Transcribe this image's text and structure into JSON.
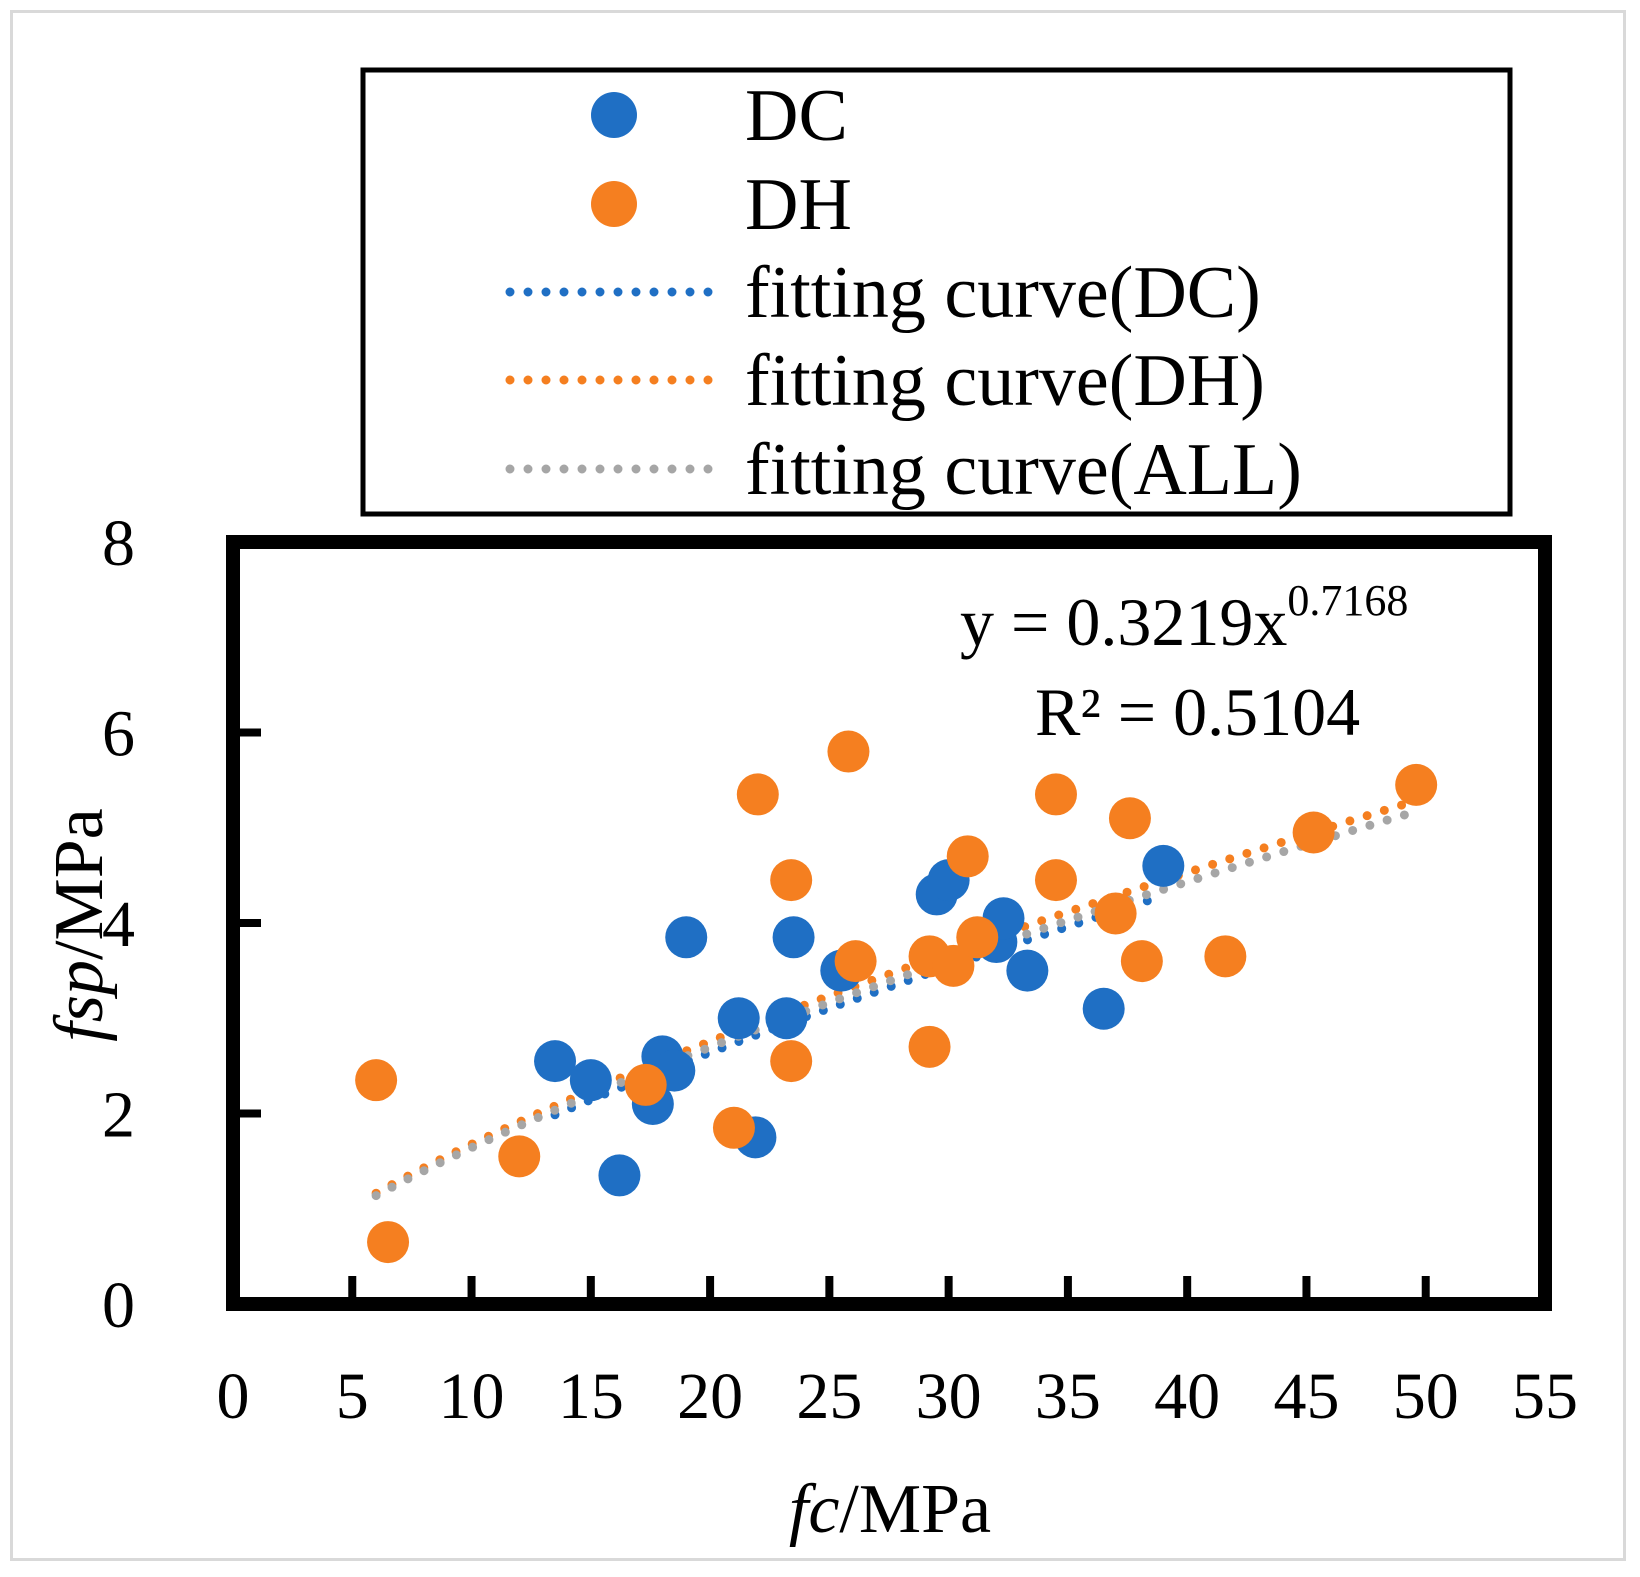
{
  "chart_data": {
    "type": "scatter",
    "xlabel_italic": "fc",
    "xlabel_unit": "/MPa",
    "ylabel_italic": "fsp",
    "ylabel_unit": "/MPa",
    "xlim": [
      0,
      55
    ],
    "ylim": [
      0,
      8
    ],
    "x_ticks": [
      "0",
      "5",
      "10",
      "15",
      "20",
      "25",
      "30",
      "35",
      "40",
      "45",
      "50",
      "55"
    ],
    "y_ticks": [
      "0",
      "2",
      "4",
      "6",
      "8"
    ],
    "equation_base": "y = 0.3219x",
    "equation_exponent": "0.7168",
    "r_squared": "R² = 0.5104",
    "legend": {
      "position": "top (above plot)",
      "items": [
        {
          "label": "DC",
          "kind": "marker",
          "color": "#1f6fc4"
        },
        {
          "label": "DH",
          "kind": "marker",
          "color": "#f57f20"
        },
        {
          "label": "fitting curve(DC)",
          "kind": "dotted-line",
          "color": "#1f6fc4"
        },
        {
          "label": "fitting curve(DH)",
          "kind": "dotted-line",
          "color": "#f57f20"
        },
        {
          "label": "fitting curve(ALL)",
          "kind": "dotted-line",
          "color": "#a6a6a6"
        }
      ]
    },
    "series": [
      {
        "name": "DC",
        "color": "#1f6fc4",
        "points": [
          [
            13.5,
            2.55
          ],
          [
            15.0,
            2.35
          ],
          [
            16.2,
            1.35
          ],
          [
            17.6,
            2.1
          ],
          [
            18.0,
            2.6
          ],
          [
            18.5,
            2.45
          ],
          [
            19.0,
            3.85
          ],
          [
            21.2,
            3.0
          ],
          [
            21.9,
            1.75
          ],
          [
            23.2,
            3.0
          ],
          [
            23.5,
            3.85
          ],
          [
            25.5,
            3.5
          ],
          [
            29.5,
            4.3
          ],
          [
            30.0,
            4.45
          ],
          [
            32.0,
            3.8
          ],
          [
            32.3,
            4.05
          ],
          [
            33.3,
            3.5
          ],
          [
            36.5,
            3.1
          ],
          [
            39.0,
            4.6
          ]
        ]
      },
      {
        "name": "DH",
        "color": "#f57f20",
        "points": [
          [
            6.0,
            2.35
          ],
          [
            6.5,
            0.65
          ],
          [
            12.0,
            1.55
          ],
          [
            17.3,
            2.3
          ],
          [
            21.0,
            1.85
          ],
          [
            22.0,
            5.35
          ],
          [
            23.4,
            4.45
          ],
          [
            23.4,
            2.55
          ],
          [
            25.8,
            5.8
          ],
          [
            26.1,
            3.6
          ],
          [
            29.2,
            3.65
          ],
          [
            29.2,
            2.7
          ],
          [
            30.2,
            3.55
          ],
          [
            30.8,
            4.7
          ],
          [
            31.2,
            3.85
          ],
          [
            34.5,
            5.35
          ],
          [
            34.5,
            4.45
          ],
          [
            37.0,
            4.1
          ],
          [
            37.6,
            5.1
          ],
          [
            38.1,
            3.6
          ],
          [
            41.6,
            3.65
          ],
          [
            45.3,
            4.95
          ],
          [
            49.6,
            5.45
          ]
        ]
      }
    ],
    "fits": [
      {
        "name": "fitting curve(DC)",
        "color": "#1f6fc4",
        "a": 0.301,
        "b": 0.725,
        "x_range": [
          13.5,
          39.0
        ]
      },
      {
        "name": "fitting curve(DH)",
        "color": "#f57f20",
        "a": 0.3219,
        "b": 0.7168,
        "x_range": [
          6.0,
          49.6
        ]
      },
      {
        "name": "fitting curve(ALL)",
        "color": "#a6a6a6",
        "a": 0.315,
        "b": 0.7168,
        "x_range": [
          6.0,
          49.6
        ]
      }
    ]
  }
}
